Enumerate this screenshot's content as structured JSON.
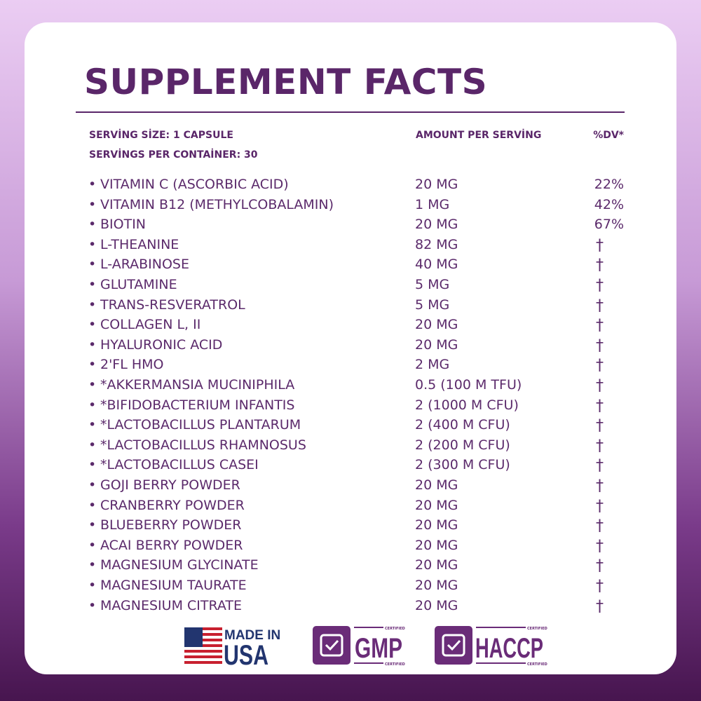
{
  "title": "SUPPLEMENT FACTS",
  "header": {
    "serving_size": "SERVİNG SİZE: 1 CAPSULE",
    "servings_per_container": "SERVİNGS PER CONTAİNER: 30",
    "amount_heading": "AMOUNT PER SERVİNG",
    "dv_heading": "%DV*"
  },
  "rows": [
    [
      "VITAMIN C (ASCORBIC ACID)",
      "20 MG",
      "22%"
    ],
    [
      "VITAMIN B12 (METHYLCOBALAMIN)",
      "1 MG",
      "42%"
    ],
    [
      "BIOTIN",
      "20 MG",
      "67%"
    ],
    [
      "L-THEANINE",
      "82 MG",
      "†"
    ],
    [
      "L-ARABINOSE",
      "40 MG",
      "†"
    ],
    [
      "GLUTAMINE",
      "5 MG",
      "†"
    ],
    [
      "TRANS-RESVERATROL",
      "5 MG",
      "†"
    ],
    [
      "COLLAGEN L, II",
      "20 MG",
      "†"
    ],
    [
      "HYALURONIC ACID",
      "20 MG",
      "†"
    ],
    [
      "2'FL HMO",
      "2 MG",
      "†"
    ],
    [
      "*AKKERMANSIA MUCINIPHILA",
      "0.5 (100 M TFU)",
      "†"
    ],
    [
      "*BIFIDOBACTERIUM INFANTIS",
      "2 (1000 M CFU)",
      "†"
    ],
    [
      "*LACTOBACILLUS PLANTARUM",
      "2 (400 M CFU)",
      "†"
    ],
    [
      "*LACTOBACILLUS RHAMNOSUS",
      "2 (200 M CFU)",
      "†"
    ],
    [
      "*LACTOBACILLUS CASEI",
      "2 (300 M CFU)",
      "†"
    ],
    [
      "GOJI BERRY POWDER",
      "20 MG",
      "†"
    ],
    [
      "CRANBERRY POWDER",
      "20 MG",
      "†"
    ],
    [
      "BLUEBERRY POWDER",
      "20 MG",
      "†"
    ],
    [
      "ACAI BERRY POWDER",
      "20 MG",
      "†"
    ],
    [
      "MAGNESIUM GLYCINATE",
      "20 MG",
      "†"
    ],
    [
      "MAGNESIUM TAURATE",
      "20 MG",
      "†"
    ],
    [
      "MAGNESIUM CITRATE",
      "20 MG",
      "†"
    ]
  ],
  "badges": {
    "made_in": "MADE IN",
    "usa": "USA",
    "gmp": "GMP",
    "haccp": "HACCP",
    "certified": "CERTIFIED"
  }
}
